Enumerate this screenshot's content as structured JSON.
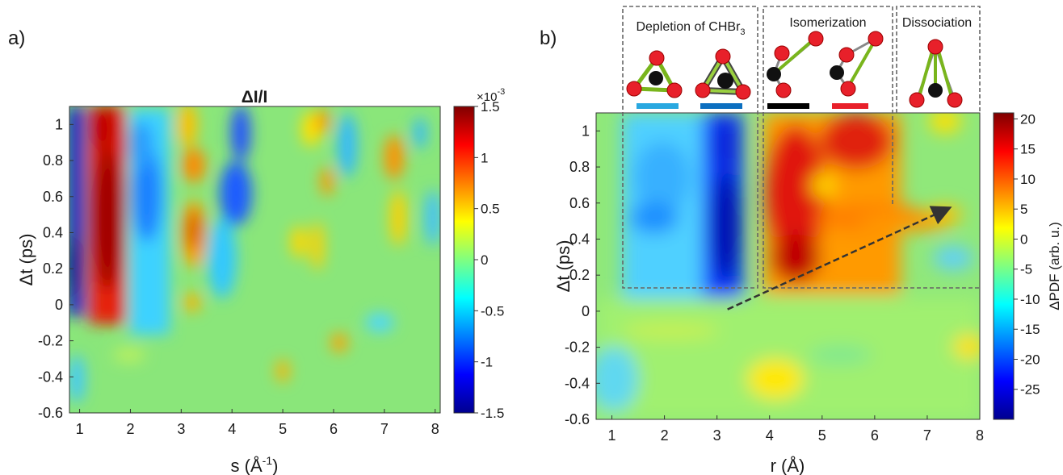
{
  "chart_data": [
    {
      "type": "heatmap",
      "panel_label": "a)",
      "title": "ΔI/I",
      "xlabel_main": "s (Å",
      "xlabel_sup": "-1",
      "xlabel_close": ")",
      "ylabel": "Δt (ps)",
      "xlim": [
        0.8,
        8.1
      ],
      "ylim": [
        -0.6,
        1.1
      ],
      "x_ticks": [
        "1",
        "2",
        "3",
        "4",
        "5",
        "6",
        "7",
        "8"
      ],
      "y_ticks": [
        "1",
        "0.8",
        "0.6",
        "0.4",
        "0.2",
        "0",
        "-0.2",
        "-0.4",
        "-0.6"
      ],
      "colorbar": {
        "range": [
          -1.5,
          1.5
        ],
        "multiplier": "×10",
        "multiplier_exp": "-3",
        "ticks": [
          "1.5",
          "1",
          "0.5",
          "0",
          "-0.5",
          "-1",
          "-1.5"
        ]
      }
    },
    {
      "type": "heatmap",
      "panel_label": "b)",
      "xlabel": "r (Å)",
      "ylabel": "Δt (ps)",
      "xlim": [
        0.7,
        8.0
      ],
      "ylim": [
        -0.6,
        1.1
      ],
      "x_ticks": [
        "1",
        "2",
        "3",
        "4",
        "5",
        "6",
        "7",
        "8"
      ],
      "y_ticks": [
        "1",
        "0.8",
        "0.6",
        "0.4",
        "0.2",
        "0",
        "-0.2",
        "-0.4",
        "-0.6"
      ],
      "colorbar": {
        "label": "ΔPDF (arb. u.)",
        "range": [
          -30,
          21
        ],
        "ticks": [
          "20",
          "15",
          "10",
          "5",
          "0",
          "-5",
          "-10",
          "-15",
          "-20",
          "-25"
        ]
      },
      "annotations": {
        "depletion_label": "Depletion of CHBr",
        "depletion_sub": "3",
        "isomerization_label": "Isomerization",
        "dissociation_label": "Dissociation",
        "arrow": {
          "from": [
            3.2,
            0.01
          ],
          "to": [
            7.4,
            0.57
          ]
        }
      },
      "marker_colors": [
        "#29a8e0",
        "#0c6fc0",
        "#000000",
        "#e8202a"
      ]
    }
  ]
}
